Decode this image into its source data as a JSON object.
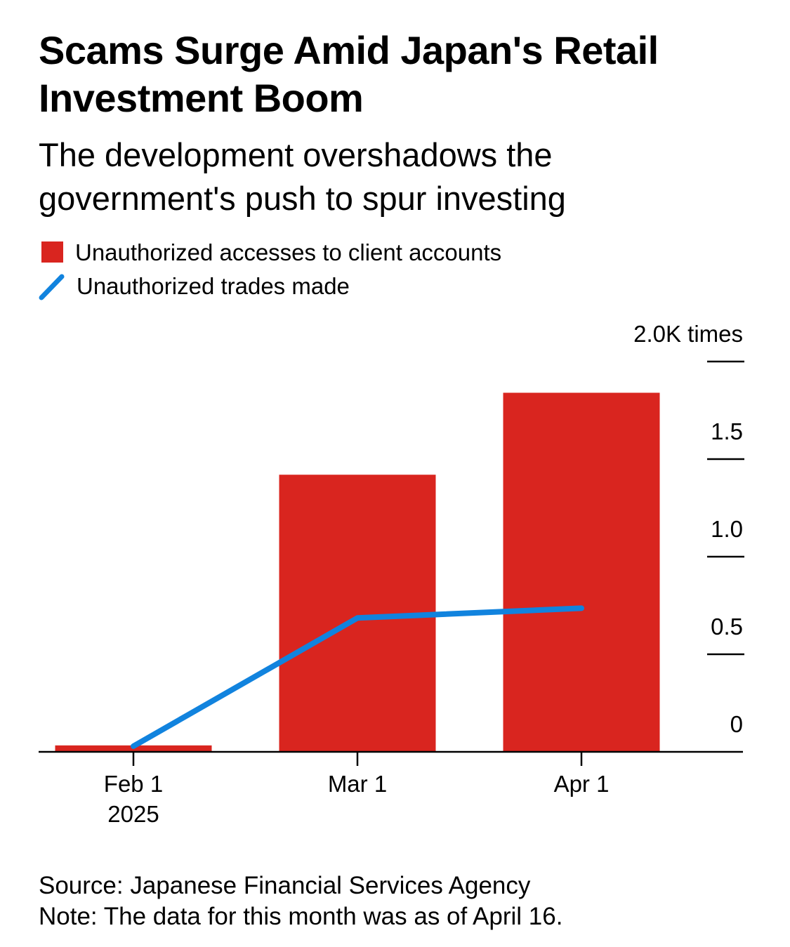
{
  "header": {
    "title": "Scams Surge Amid Japan's Retail Investment Boom",
    "subtitle": "The development overshadows the government's push to spur investing"
  },
  "legend": {
    "bar_label": "Unauthorized accesses to client accounts",
    "line_label": "Unauthorized trades made"
  },
  "footer": {
    "source": "Source: Japanese Financial Services Agency",
    "note": "Note: The data for this month was as of April 16."
  },
  "chart_data": {
    "type": "bar",
    "categories": [
      "Feb 1",
      "Mar 1",
      "Apr 1"
    ],
    "category_sublabels": [
      "2025",
      "",
      ""
    ],
    "series": [
      {
        "name": "Unauthorized accesses to client accounts",
        "type": "bar",
        "color": "#d9251f",
        "values": [
          33,
          1420,
          1840
        ]
      },
      {
        "name": "Unauthorized trades made",
        "type": "line",
        "color": "#1183de",
        "values": [
          29,
          686,
          736
        ]
      }
    ],
    "y_axis": {
      "unit_label": "2.0K times",
      "ticks": [
        {
          "value": 0,
          "label": "0"
        },
        {
          "value": 500,
          "label": "0.5"
        },
        {
          "value": 1000,
          "label": "1.0"
        },
        {
          "value": 1500,
          "label": "1.5"
        },
        {
          "value": 2000,
          "label": "2.0K times"
        }
      ],
      "ylim": [
        0,
        2000
      ],
      "position": "right"
    },
    "grid": false,
    "legend_position": "top-left"
  }
}
